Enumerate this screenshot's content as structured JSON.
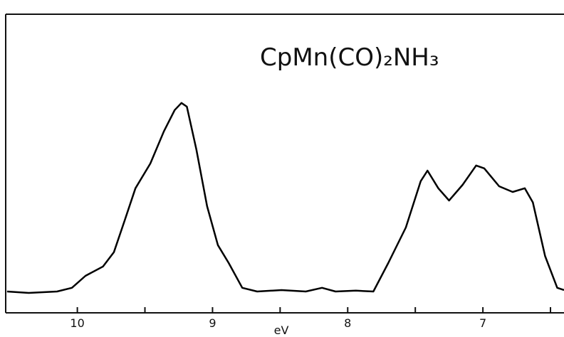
{
  "chart_data": {
    "type": "line",
    "title": "CpMn(CO)₂NH₃",
    "xlabel": "eV",
    "xlim": [
      10.53,
      6.4
    ],
    "ylim": [
      0,
      105
    ],
    "xticks": [
      10,
      9,
      8,
      7
    ],
    "xticks_minor": [
      9.5,
      8.5,
      7.5,
      6.5
    ],
    "series": [
      {
        "color": "#000000",
        "x": [
          10.52,
          10.36,
          10.15,
          10.04,
          9.94,
          9.81,
          9.73,
          9.65,
          9.57,
          9.46,
          9.36,
          9.28,
          9.23,
          9.19,
          9.12,
          9.04,
          8.96,
          8.88,
          8.78,
          8.67,
          8.49,
          8.31,
          8.19,
          8.09,
          7.94,
          7.81,
          7.7,
          7.57,
          7.46,
          7.41,
          7.33,
          7.25,
          7.15,
          7.05,
          6.99,
          6.88,
          6.78,
          6.69,
          6.63,
          6.54,
          6.45,
          6.4
        ],
        "values": [
          7.5,
          7,
          7.5,
          8.8,
          13,
          16.3,
          21.3,
          32.5,
          43.8,
          52.5,
          63.8,
          71.3,
          73.8,
          72.5,
          57.5,
          37.5,
          23.8,
          17.5,
          8.8,
          7.5,
          8,
          7.5,
          8.8,
          7.5,
          7.8,
          7.5,
          17.5,
          30,
          46.3,
          50,
          43.8,
          39.5,
          45,
          51.8,
          50.8,
          44.5,
          42.5,
          43.8,
          38.8,
          20,
          8.8,
          8
        ]
      }
    ]
  }
}
